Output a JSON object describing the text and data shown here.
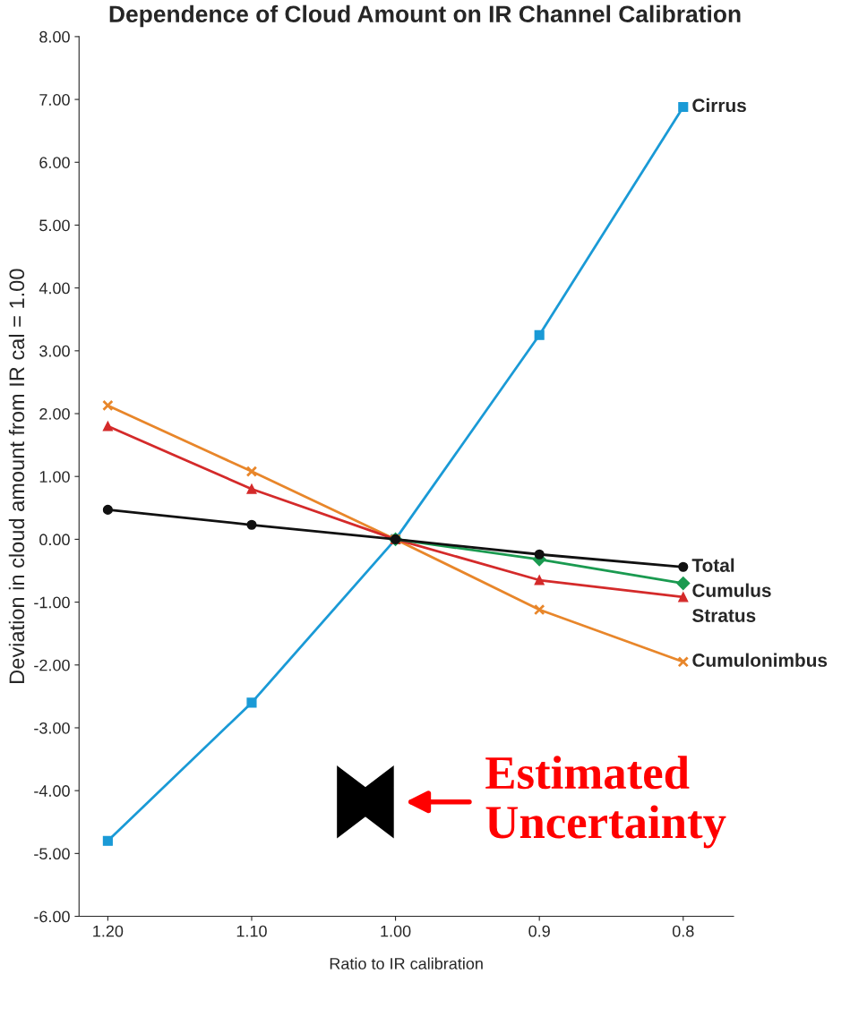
{
  "chart_data": {
    "type": "line",
    "title": "Dependence of Cloud Amount on IR Channel Calibration",
    "xlabel": "Ratio to IR calibration",
    "ylabel": "Deviation in cloud amount from IR cal = 1.00",
    "categories": [
      "1.20",
      "1.10",
      "1.00",
      "0.9",
      "0.8"
    ],
    "series": [
      {
        "name": "Cirrus",
        "color": "#1a9ad6",
        "marker": "square",
        "values": [
          -4.8,
          -2.6,
          0,
          3.25,
          6.88
        ]
      },
      {
        "name": "Cumulonimbus",
        "color": "#e8862a",
        "marker": "cross",
        "values": [
          2.13,
          1.08,
          0,
          -1.12,
          -1.95
        ]
      },
      {
        "name": "Stratus",
        "color": "#d42a2a",
        "marker": "triangle",
        "values": [
          1.8,
          0.8,
          0,
          -0.65,
          -0.92
        ]
      },
      {
        "name": "Cumulus",
        "color": "#1a9a50",
        "marker": "diamond",
        "values": [
          null,
          null,
          0,
          -0.32,
          -0.7
        ]
      },
      {
        "name": "Total",
        "color": "#111111",
        "marker": "circle",
        "values": [
          0.47,
          0.23,
          0,
          -0.24,
          -0.44
        ]
      }
    ],
    "ylim": [
      -6,
      8
    ],
    "yticks": [
      {
        "value": -6,
        "label": "-6.00"
      },
      {
        "value": -5,
        "label": "-5.00"
      },
      {
        "value": -4,
        "label": "-4.00"
      },
      {
        "value": -3,
        "label": "-3.00"
      },
      {
        "value": -2,
        "label": "-2.00"
      },
      {
        "value": -1,
        "label": "-1.00"
      },
      {
        "value": 0,
        "label": "0.00"
      },
      {
        "value": 1,
        "label": "1.00"
      },
      {
        "value": 2,
        "label": "2.00"
      },
      {
        "value": 3,
        "label": "3.00"
      },
      {
        "value": 4,
        "label": "4.00"
      },
      {
        "value": 5,
        "label": "5.00"
      },
      {
        "value": 6,
        "label": "6.00"
      },
      {
        "value": 7,
        "label": "7.00"
      },
      {
        "value": 8,
        "label": "8.00"
      }
    ],
    "grid": false,
    "legend": false,
    "annotations": [
      "Estimated\nUncertainty"
    ]
  }
}
